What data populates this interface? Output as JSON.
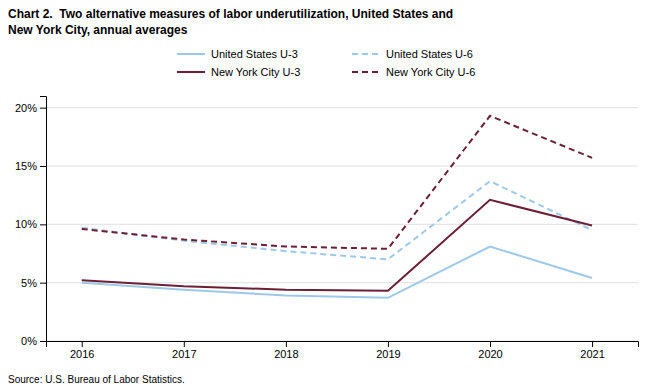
{
  "chart_data": {
    "type": "line",
    "title": "Chart 2.  Two alternative measures of labor underutilization, United States and",
    "subtitle": "New York City, annual averages",
    "annotations": [
      "Source: U.S. Bureau of Labor Statistics."
    ],
    "x": [
      2016,
      2017,
      2018,
      2019,
      2020,
      2021
    ],
    "series": [
      {
        "name": "United States U-3",
        "color": "#9ec8e8",
        "line_style": "solid",
        "values": [
          5.0,
          4.4,
          3.9,
          3.7,
          8.1,
          5.4
        ]
      },
      {
        "name": "United States U-6",
        "color": "#9ec8e8",
        "line_style": "dashed",
        "values": [
          9.7,
          8.6,
          7.7,
          7.0,
          13.7,
          9.5
        ]
      },
      {
        "name": "New York City U-3",
        "color": "#6b2035",
        "line_style": "solid",
        "values": [
          5.2,
          4.7,
          4.4,
          4.3,
          12.1,
          9.9
        ]
      },
      {
        "name": "New York City U-6",
        "color": "#6b2035",
        "line_style": "dashed",
        "values": [
          9.6,
          8.7,
          8.1,
          7.9,
          19.3,
          15.7
        ]
      }
    ],
    "xlim": [
      2015.65,
      2021.45
    ],
    "xticks": [
      2016,
      2017,
      2018,
      2019,
      2020,
      2021
    ],
    "ylim": [
      0,
      21
    ],
    "yticks": [
      {
        "value": 0,
        "label": "0%"
      },
      {
        "value": 5,
        "label": "5%"
      },
      {
        "value": 10,
        "label": "10%"
      },
      {
        "value": 15,
        "label": "15%"
      },
      {
        "value": 20,
        "label": "20%"
      }
    ],
    "grid": true,
    "legend": "top"
  }
}
